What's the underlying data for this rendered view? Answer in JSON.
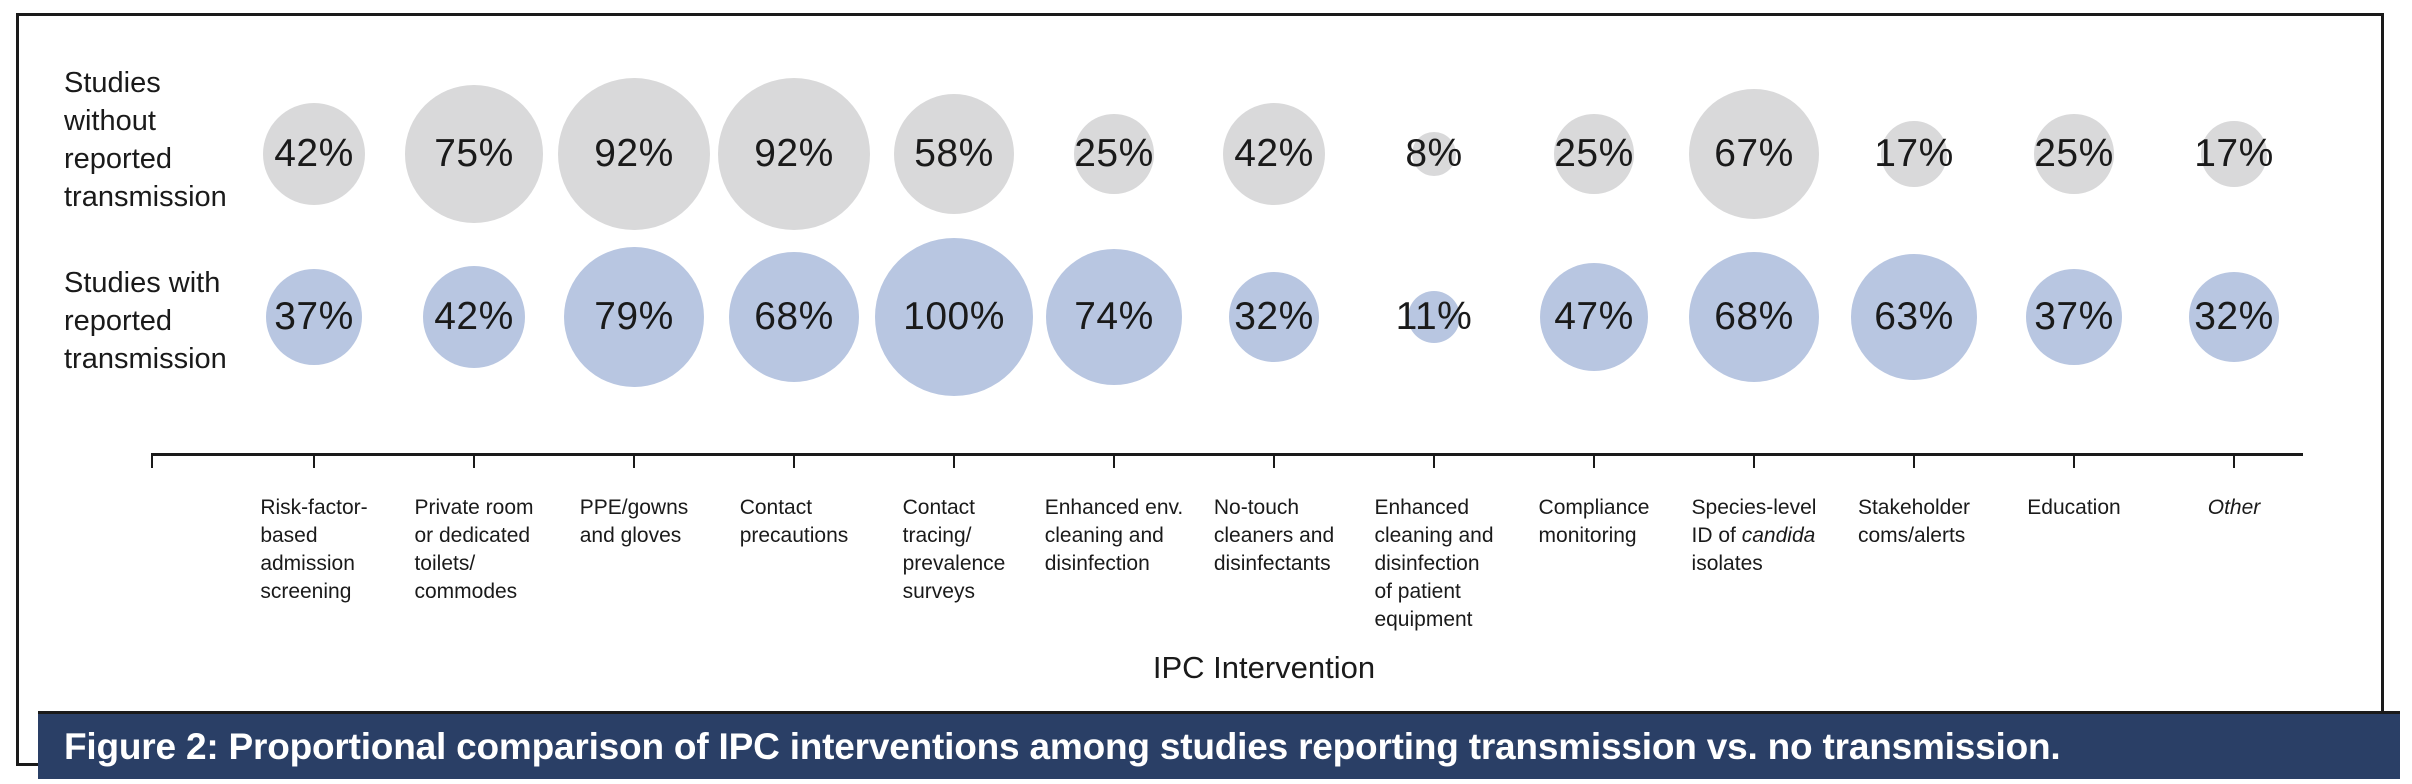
{
  "figure_caption": {
    "text": "Figure 2: Proportional comparison of IPC interventions among studies reporting transmission vs. no transmission.",
    "bg": "#2a3f66",
    "fg": "#ffffff"
  },
  "chart_data": {
    "type": "bubble",
    "xlabel": "IPC Intervention",
    "value_format": "percent",
    "size_encoding": "bubble diameter proportional to sqrt(value)",
    "grid": false,
    "legend_position": "row labels at left",
    "colors": {
      "without": "#d9d9da",
      "with": "#b8c6e1",
      "axis": "#1a1a1a"
    },
    "rows": [
      {
        "label": "Studies without reported transmission",
        "label_lines": [
          "Studies",
          "without",
          "reported",
          "transmission"
        ],
        "color": "#d9d9da",
        "values": [
          42,
          75,
          92,
          92,
          58,
          25,
          42,
          8,
          25,
          67,
          17,
          25,
          17
        ]
      },
      {
        "label": "Studies with reported transmission",
        "label_lines": [
          "Studies with",
          "reported",
          "transmission"
        ],
        "color": "#b8c6e1",
        "values": [
          37,
          42,
          79,
          68,
          100,
          74,
          32,
          11,
          47,
          68,
          63,
          37,
          32
        ]
      }
    ],
    "categories": [
      {
        "label": "Risk-factor-based admission screening",
        "lines": [
          "Risk-factor-",
          "based",
          "admission",
          "screening"
        ]
      },
      {
        "label": "Private room or dedicated toilets/commodes",
        "lines": [
          "Private room",
          "or dedicated",
          "toilets/",
          "commodes"
        ]
      },
      {
        "label": "PPE/gowns and gloves",
        "lines": [
          "PPE/gowns",
          "and gloves"
        ]
      },
      {
        "label": "Contact precautions",
        "lines": [
          "Contact",
          "precautions"
        ]
      },
      {
        "label": "Contact tracing/prevalence surveys",
        "lines": [
          "Contact",
          "tracing/",
          "prevalence",
          "surveys"
        ]
      },
      {
        "label": "Enhanced env. cleaning and disinfection",
        "lines": [
          "Enhanced env.",
          "cleaning and",
          "disinfection"
        ]
      },
      {
        "label": "No-touch cleaners and disinfectants",
        "lines": [
          "No-touch",
          "cleaners and",
          "disinfectants"
        ]
      },
      {
        "label": "Enhanced cleaning and disinfection of patient equipment",
        "lines": [
          "Enhanced",
          "cleaning and",
          "disinfection",
          "of patient",
          "equipment"
        ]
      },
      {
        "label": "Compliance monitoring",
        "lines": [
          "Compliance",
          "monitoring"
        ]
      },
      {
        "label": "Species-level ID of candida isolates",
        "lines": [
          "Species-level",
          "ID of *candida*",
          "isolates"
        ]
      },
      {
        "label": "Stakeholder coms/alerts",
        "lines": [
          "Stakeholder",
          "coms/alerts"
        ]
      },
      {
        "label": "Education",
        "lines": [
          "Education"
        ]
      },
      {
        "label": "Other",
        "lines": [
          "*Other*"
        ]
      }
    ]
  }
}
